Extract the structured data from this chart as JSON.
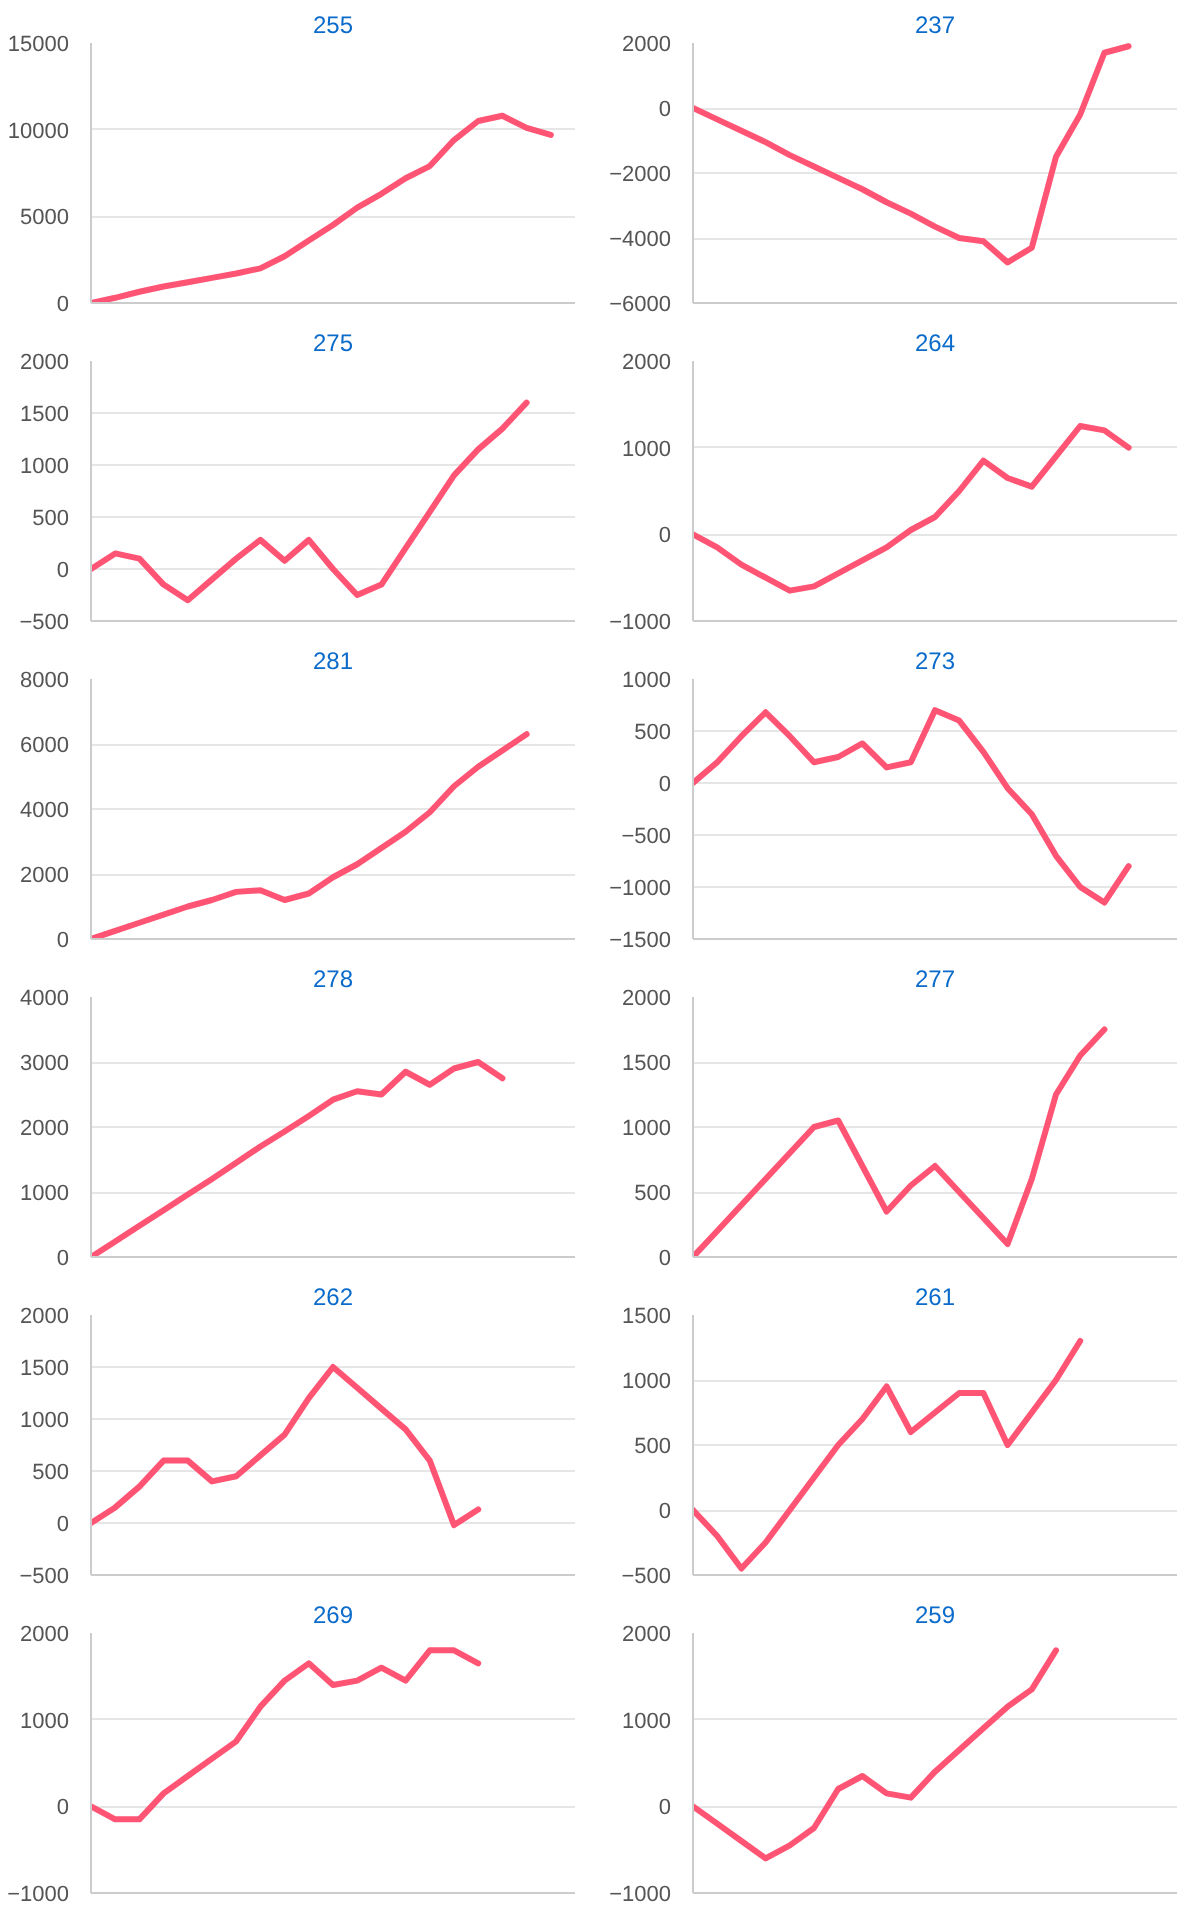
{
  "chart_data": [
    {
      "type": "line",
      "title": "255",
      "categories": [
        null,
        null,
        null,
        null,
        null,
        null,
        null,
        null,
        null,
        null,
        null,
        null,
        null,
        null,
        null,
        null,
        null,
        null,
        null,
        null,
        null
      ],
      "color": "#ff5473",
      "values": [
        0,
        300,
        650,
        950,
        1200,
        1450,
        1700,
        2000,
        2700,
        3600,
        4500,
        5500,
        6300,
        7200,
        7900,
        9400,
        10500,
        10800,
        10100,
        9700,
        null
      ],
      "ylim": [
        0,
        15000
      ],
      "yticks": [
        0,
        5000,
        10000,
        15000
      ],
      "grid": "y",
      "tick_labels": "y"
    },
    {
      "type": "line",
      "title": "237",
      "categories": [
        null,
        null,
        null,
        null,
        null,
        null,
        null,
        null,
        null,
        null,
        null,
        null,
        null,
        null,
        null,
        null,
        null,
        null,
        null,
        null,
        null
      ],
      "color": "#ff5473",
      "values": [
        0,
        -350,
        -700,
        -1050,
        -1450,
        -1800,
        -2150,
        -2500,
        -2900,
        -3250,
        -3650,
        -4000,
        -4100,
        -4750,
        -4300,
        -1500,
        -200,
        1700,
        1900,
        null,
        null
      ],
      "ylim": [
        -6000,
        2000
      ],
      "yticks": [
        -6000,
        -4000,
        -2000,
        0,
        2000
      ],
      "grid": "y",
      "tick_labels": "y"
    },
    {
      "type": "line",
      "title": "275",
      "categories": [
        null,
        null,
        null,
        null,
        null,
        null,
        null,
        null,
        null,
        null,
        null,
        null,
        null,
        null,
        null,
        null,
        null,
        null,
        null,
        null,
        null
      ],
      "color": "#ff5473",
      "values": [
        0,
        150,
        100,
        -150,
        -300,
        -100,
        100,
        280,
        80,
        280,
        0,
        -250,
        -150,
        200,
        550,
        900,
        1150,
        1350,
        1600,
        null,
        null
      ],
      "ylim": [
        -500,
        2000
      ],
      "yticks": [
        -500,
        0,
        500,
        1000,
        1500,
        2000
      ],
      "grid": "y",
      "tick_labels": "y"
    },
    {
      "type": "line",
      "title": "264",
      "categories": [
        null,
        null,
        null,
        null,
        null,
        null,
        null,
        null,
        null,
        null,
        null,
        null,
        null,
        null,
        null,
        null,
        null,
        null,
        null,
        null,
        null
      ],
      "color": "#ff5473",
      "values": [
        0,
        -150,
        -350,
        -500,
        -650,
        -600,
        -450,
        -300,
        -150,
        50,
        200,
        500,
        850,
        650,
        550,
        900,
        1250,
        1200,
        1000,
        null,
        null
      ],
      "ylim": [
        -1000,
        2000
      ],
      "yticks": [
        -1000,
        0,
        1000,
        2000
      ],
      "grid": "y",
      "tick_labels": "y"
    },
    {
      "type": "line",
      "title": "281",
      "categories": [
        null,
        null,
        null,
        null,
        null,
        null,
        null,
        null,
        null,
        null,
        null,
        null,
        null,
        null,
        null,
        null,
        null,
        null,
        null,
        null,
        null
      ],
      "color": "#ff5473",
      "values": [
        0,
        250,
        500,
        750,
        1000,
        1200,
        1450,
        1500,
        1200,
        1400,
        1900,
        2300,
        2800,
        3300,
        3900,
        4700,
        5300,
        5800,
        6300,
        null,
        null
      ],
      "ylim": [
        0,
        8000
      ],
      "yticks": [
        0,
        2000,
        4000,
        6000,
        8000
      ],
      "grid": "y",
      "tick_labels": "y"
    },
    {
      "type": "line",
      "title": "273",
      "categories": [
        null,
        null,
        null,
        null,
        null,
        null,
        null,
        null,
        null,
        null,
        null,
        null,
        null,
        null,
        null,
        null,
        null,
        null,
        null,
        null,
        null
      ],
      "color": "#ff5473",
      "values": [
        0,
        200,
        450,
        680,
        450,
        200,
        250,
        380,
        150,
        200,
        700,
        600,
        300,
        -50,
        -300,
        -700,
        -1000,
        -1150,
        -800,
        null,
        null
      ],
      "ylim": [
        -1500,
        1000
      ],
      "yticks": [
        -1500,
        -1000,
        -500,
        0,
        500,
        1000
      ],
      "grid": "y",
      "tick_labels": "y"
    },
    {
      "type": "line",
      "title": "278",
      "categories": [
        null,
        null,
        null,
        null,
        null,
        null,
        null,
        null,
        null,
        null,
        null,
        null,
        null,
        null,
        null,
        null,
        null,
        null,
        null,
        null,
        null
      ],
      "color": "#ff5473",
      "values": [
        0,
        240,
        480,
        720,
        960,
        1200,
        1450,
        1700,
        1930,
        2170,
        2420,
        2550,
        2500,
        2850,
        2650,
        2900,
        3000,
        2750,
        null,
        null,
        null
      ],
      "ylim": [
        0,
        4000
      ],
      "yticks": [
        0,
        1000,
        2000,
        3000,
        4000
      ],
      "grid": "y",
      "tick_labels": "y"
    },
    {
      "type": "line",
      "title": "277",
      "categories": [
        null,
        null,
        null,
        null,
        null,
        null,
        null,
        null,
        null,
        null,
        null,
        null,
        null,
        null,
        null,
        null,
        null,
        null,
        null,
        null,
        null
      ],
      "color": "#ff5473",
      "values": [
        0,
        200,
        400,
        600,
        800,
        1000,
        1050,
        700,
        350,
        550,
        700,
        500,
        300,
        100,
        600,
        1250,
        1550,
        1750,
        null,
        null,
        null
      ],
      "ylim": [
        0,
        2000
      ],
      "yticks": [
        0,
        500,
        1000,
        1500,
        2000
      ],
      "grid": "y",
      "tick_labels": "y"
    },
    {
      "type": "line",
      "title": "262",
      "categories": [
        null,
        null,
        null,
        null,
        null,
        null,
        null,
        null,
        null,
        null,
        null,
        null,
        null,
        null,
        null,
        null,
        null,
        null,
        null,
        null,
        null
      ],
      "color": "#ff5473",
      "values": [
        0,
        150,
        350,
        600,
        600,
        400,
        450,
        650,
        850,
        1200,
        1500,
        1300,
        1100,
        900,
        600,
        -20,
        130,
        null,
        null,
        null,
        null
      ],
      "ylim": [
        -500,
        2000
      ],
      "yticks": [
        -500,
        0,
        500,
        1000,
        1500,
        2000
      ],
      "grid": "y",
      "tick_labels": "y"
    },
    {
      "type": "line",
      "title": "261",
      "categories": [
        null,
        null,
        null,
        null,
        null,
        null,
        null,
        null,
        null,
        null,
        null,
        null,
        null,
        null,
        null,
        null,
        null,
        null,
        null,
        null,
        null
      ],
      "color": "#ff5473",
      "values": [
        0,
        -200,
        -450,
        -250,
        0,
        250,
        500,
        700,
        950,
        600,
        750,
        900,
        900,
        500,
        750,
        1000,
        1300,
        null,
        null,
        null,
        null
      ],
      "ylim": [
        -500,
        1500
      ],
      "yticks": [
        -500,
        0,
        500,
        1000,
        1500
      ],
      "grid": "y",
      "tick_labels": "y"
    },
    {
      "type": "line",
      "title": "269",
      "categories": [
        null,
        null,
        null,
        null,
        null,
        null,
        null,
        null,
        null,
        null,
        null,
        null,
        null,
        null,
        null,
        null,
        null,
        null,
        null,
        null,
        null
      ],
      "color": "#ff5473",
      "values": [
        0,
        -150,
        -150,
        150,
        350,
        550,
        750,
        1150,
        1450,
        1650,
        1400,
        1450,
        1600,
        1450,
        1800,
        1800,
        1650,
        null,
        null,
        null,
        null
      ],
      "ylim": [
        -1000,
        2000
      ],
      "yticks": [
        -1000,
        0,
        1000,
        2000
      ],
      "grid": "y",
      "tick_labels": "y"
    },
    {
      "type": "line",
      "title": "259",
      "categories": [
        null,
        null,
        null,
        null,
        null,
        null,
        null,
        null,
        null,
        null,
        null,
        null,
        null,
        null,
        null,
        null,
        null,
        null,
        null,
        null,
        null
      ],
      "color": "#ff5473",
      "values": [
        0,
        -200,
        -400,
        -600,
        -450,
        -250,
        200,
        350,
        150,
        100,
        400,
        650,
        900,
        1150,
        1350,
        1800,
        null,
        null,
        null,
        null,
        null
      ],
      "ylim": [
        -1000,
        2000
      ],
      "yticks": [
        -1000,
        0,
        1000,
        2000
      ],
      "grid": "y",
      "tick_labels": "y"
    }
  ]
}
